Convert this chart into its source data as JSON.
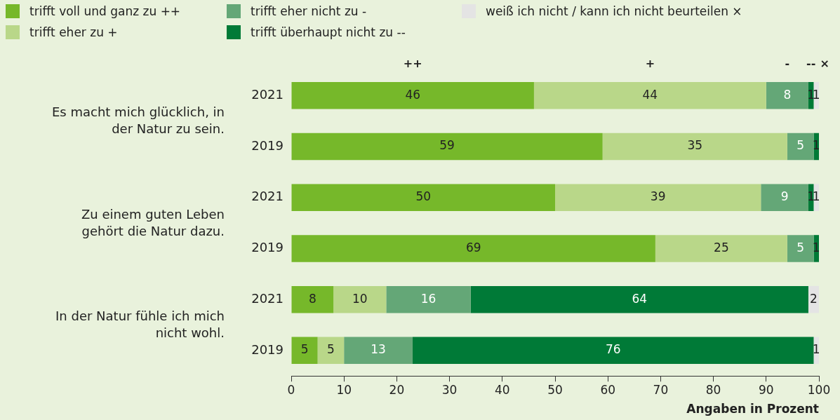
{
  "chart_data": {
    "type": "bar",
    "orientation": "horizontal",
    "stacked": true,
    "categories": [
      "2021",
      "2019",
      "2021",
      "2019",
      "2021",
      "2019"
    ],
    "series": [
      {
        "name": "trifft voll und ganz zu ++",
        "color": "#76b82a",
        "values": [
          46,
          59,
          50,
          69,
          8,
          5
        ]
      },
      {
        "name": "trifft eher zu +",
        "color": "#b9d789",
        "values": [
          44,
          35,
          39,
          25,
          10,
          5
        ]
      },
      {
        "name": "trifft eher nicht zu -",
        "color": "#64a777",
        "values": [
          8,
          5,
          9,
          5,
          16,
          13
        ]
      },
      {
        "name": "trifft überhaupt nicht zu --",
        "color": "#007a37",
        "values": [
          1,
          1,
          1,
          1,
          64,
          76
        ]
      },
      {
        "name": "weiß ich nicht / kann ich nicht beurteilen ×",
        "color": "#e4e4e4",
        "values": [
          1,
          null,
          1,
          null,
          2,
          1
        ]
      }
    ],
    "xlim": [
      0,
      100
    ],
    "xticks": [
      0,
      10,
      20,
      30,
      40,
      50,
      60,
      70,
      80,
      90,
      100
    ],
    "xlabel": "Angaben in Prozent",
    "grid": false,
    "legend": "top",
    "data_labels": true,
    "annotations": [
      "Es macht mich glücklich, in der Natur zu sein.",
      "Zu einem guten Leben gehört die Natur dazu.",
      "In der Natur fühle ich mich nicht wohl.",
      "++",
      "+",
      "-",
      "--",
      "×"
    ]
  }
}
